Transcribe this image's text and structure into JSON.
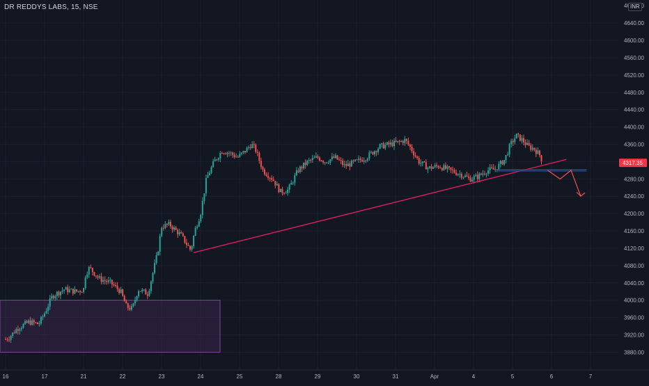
{
  "header": {
    "symbol_title": "DR REDDYS LABS, 15, NSE",
    "currency": "INR",
    "top_price_label": "4680.00"
  },
  "price_axis": {
    "ticks": [
      4640,
      4600,
      4560,
      4520,
      4480,
      4440,
      4400,
      4360,
      4320,
      4280,
      4240,
      4200,
      4160,
      4120,
      4080,
      4040,
      4000,
      3960,
      3920,
      3880
    ],
    "current_price": "4317.35",
    "current_price_value": 4317.35
  },
  "time_axis": {
    "labels": [
      "16",
      "17",
      "21",
      "22",
      "23",
      "24",
      "25",
      "28",
      "29",
      "30",
      "31",
      "Apr",
      "4",
      "5",
      "6",
      "7"
    ]
  },
  "colors": {
    "background": "#131722",
    "up": "#26a69a",
    "down": "#ef5350",
    "trendline": "#e91e63",
    "zone_fill": "#4a2a5c",
    "zone_border": "#7b4a95",
    "support_fill": "#2e4a8a",
    "arrow": "#ef5350",
    "price_badge": "#f23645",
    "axis_text": "#b2b5be"
  },
  "chart_data": {
    "type": "candlestick",
    "symbol": "DR REDDYS LABS",
    "interval": "15",
    "exchange": "NSE",
    "ylim": [
      3855,
      4690
    ],
    "x_axis_labels": [
      "16",
      "17",
      "21",
      "22",
      "23",
      "24",
      "25",
      "28",
      "29",
      "30",
      "31",
      "Apr",
      "4",
      "5",
      "6",
      "7"
    ],
    "last_price": 4317.35,
    "price_path": [
      [
        0,
        3910
      ],
      [
        0.1,
        3915
      ],
      [
        0.3,
        3935
      ],
      [
        0.6,
        3950
      ],
      [
        0.85,
        3945
      ],
      [
        1.0,
        3970
      ],
      [
        1.2,
        4010
      ],
      [
        1.5,
        4025
      ],
      [
        1.8,
        4020
      ],
      [
        2.0,
        4025
      ],
      [
        2.05,
        4060
      ],
      [
        2.15,
        4075
      ],
      [
        2.4,
        4050
      ],
      [
        2.7,
        4040
      ],
      [
        2.95,
        4020
      ],
      [
        3.1,
        3985
      ],
      [
        3.25,
        3980
      ],
      [
        3.4,
        4025
      ],
      [
        3.65,
        4015
      ],
      [
        3.9,
        4110
      ],
      [
        4.0,
        4170
      ],
      [
        4.2,
        4175
      ],
      [
        4.5,
        4150
      ],
      [
        4.75,
        4115
      ],
      [
        4.85,
        4160
      ],
      [
        5.0,
        4200
      ],
      [
        5.15,
        4280
      ],
      [
        5.35,
        4320
      ],
      [
        5.55,
        4345
      ],
      [
        5.75,
        4340
      ],
      [
        5.95,
        4330
      ],
      [
        6.15,
        4345
      ],
      [
        6.3,
        4360
      ],
      [
        6.4,
        4350
      ],
      [
        6.6,
        4300
      ],
      [
        6.85,
        4280
      ],
      [
        7.05,
        4250
      ],
      [
        7.25,
        4255
      ],
      [
        7.5,
        4300
      ],
      [
        7.75,
        4320
      ],
      [
        8.0,
        4330
      ],
      [
        8.2,
        4320
      ],
      [
        8.45,
        4330
      ],
      [
        8.7,
        4310
      ],
      [
        9.0,
        4320
      ],
      [
        9.25,
        4330
      ],
      [
        9.6,
        4355
      ],
      [
        9.85,
        4360
      ],
      [
        10.1,
        4365
      ],
      [
        10.25,
        4370
      ],
      [
        10.4,
        4350
      ],
      [
        10.6,
        4320
      ],
      [
        10.85,
        4305
      ],
      [
        11.1,
        4310
      ],
      [
        11.4,
        4300
      ],
      [
        11.7,
        4290
      ],
      [
        11.9,
        4280
      ],
      [
        12.1,
        4285
      ],
      [
        12.35,
        4300
      ],
      [
        12.55,
        4302
      ],
      [
        12.8,
        4325
      ],
      [
        12.95,
        4360
      ],
      [
        13.1,
        4380
      ],
      [
        13.25,
        4370
      ],
      [
        13.4,
        4355
      ],
      [
        13.55,
        4350
      ],
      [
        13.7,
        4335
      ],
      [
        13.78,
        4318
      ]
    ],
    "annotations": {
      "rising_trendline": {
        "from_x": 4.82,
        "from_y": 4110,
        "to_x": 14.38,
        "to_y": 4325
      },
      "demand_zone": {
        "x_start": -0.3,
        "x_end": 5.5,
        "y_low": 3880,
        "y_high": 4000
      },
      "support_band": {
        "x_start": 12.6,
        "x_end": 14.9,
        "y_low": 4297,
        "y_high": 4303
      },
      "projected_path": [
        [
          13.9,
          4300
        ],
        [
          14.22,
          4280
        ],
        [
          14.5,
          4300
        ],
        [
          14.75,
          4240
        ]
      ]
    }
  }
}
